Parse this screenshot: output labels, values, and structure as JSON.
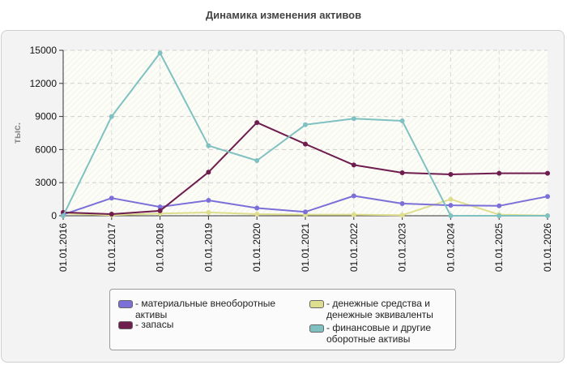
{
  "chart_data": {
    "type": "line",
    "title": "Динамика изменения активов",
    "ylabel": "тыс.",
    "xlabel": "",
    "ylim": [
      0,
      15000
    ],
    "yticks": [
      0,
      3000,
      6000,
      9000,
      12000,
      15000
    ],
    "grid": true,
    "legend_position": "bottom",
    "categories": [
      "01.01.2016",
      "01.01.2017",
      "01.01.2018",
      "01.01.2019",
      "01.01.2020",
      "01.01.2021",
      "01.01.2022",
      "01.01.2023",
      "01.01.2024",
      "01.01.2025",
      "01.01.2026"
    ],
    "series": [
      {
        "name": "материальные внеоборотные активы",
        "color": "#7b6fd8",
        "values": [
          100,
          1600,
          800,
          1400,
          700,
          350,
          1800,
          1100,
          950,
          900,
          1750
        ]
      },
      {
        "name": "денежные средства и денежные эквиваленты",
        "color": "#dede8e",
        "values": [
          200,
          50,
          200,
          300,
          150,
          100,
          100,
          50,
          1500,
          100,
          20
        ]
      },
      {
        "name": "запасы",
        "color": "#6e1d4e",
        "values": [
          300,
          150,
          450,
          3950,
          8450,
          6500,
          4600,
          3900,
          3750,
          3850,
          3850
        ]
      },
      {
        "name": "финансовые и другие оборотные активы",
        "color": "#7fc1c1",
        "values": [
          0,
          9000,
          14750,
          6350,
          5000,
          8250,
          8800,
          8600,
          0,
          0,
          0
        ]
      }
    ]
  }
}
